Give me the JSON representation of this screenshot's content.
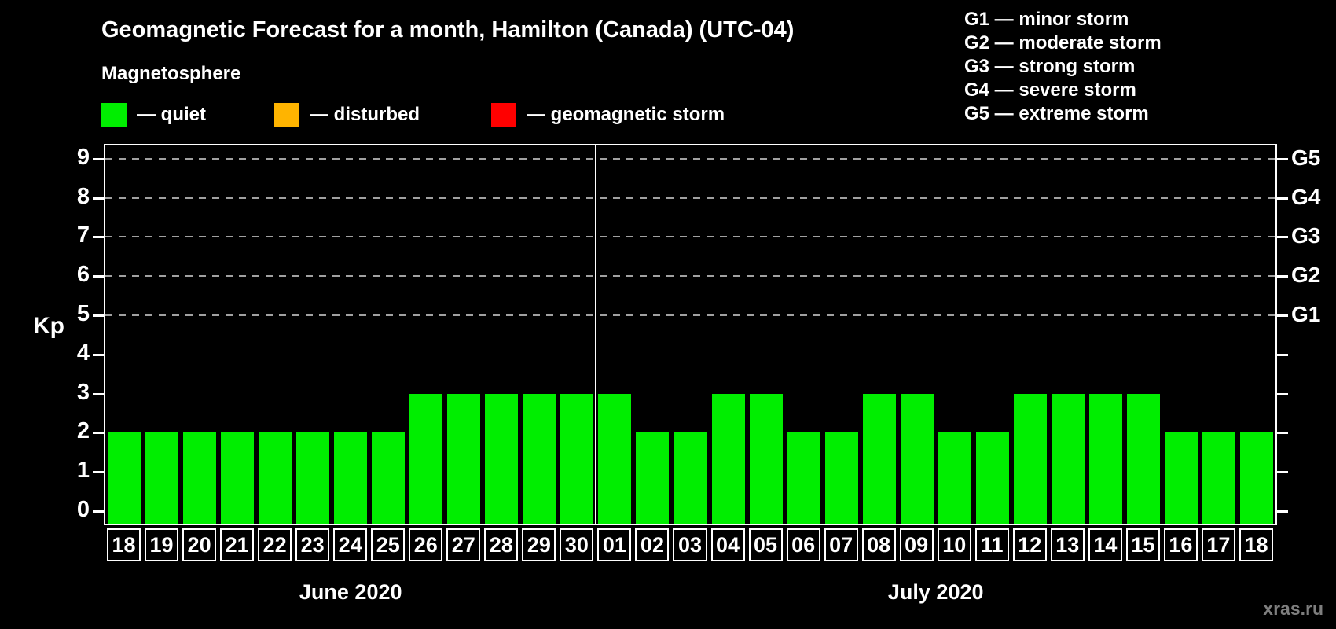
{
  "header": {
    "title": "Geomagnetic Forecast for a month, Hamilton (Canada) (UTC-04)"
  },
  "legend": {
    "title": "Magnetosphere",
    "items": [
      {
        "key": "quiet",
        "label": "— quiet"
      },
      {
        "key": "disturbed",
        "label": "— disturbed"
      },
      {
        "key": "storm",
        "label": "— geomagnetic storm"
      }
    ]
  },
  "g_legend": {
    "items": [
      "G1 — minor storm",
      "G2 — moderate storm",
      "G3 — strong storm",
      "G4 — severe storm",
      "G5 — extreme storm"
    ]
  },
  "colors": {
    "quiet": "#00ee00",
    "disturbed": "#ffb400",
    "storm": "#ff0000",
    "grid": "#a0a0a0",
    "axis": "#ffffff",
    "watermark": "#7e7e7e"
  },
  "watermark": "xras.ru",
  "chart_data": {
    "type": "bar",
    "title": "Geomagnetic Forecast for a month, Hamilton (Canada) (UTC-04)",
    "ylabel": "Kp",
    "ylim": [
      0,
      9
    ],
    "y_ticks": [
      0,
      1,
      2,
      3,
      4,
      5,
      6,
      7,
      8,
      9
    ],
    "grid_kp": [
      5,
      6,
      7,
      8,
      9
    ],
    "grid_style": "dashed",
    "legend_position": "top",
    "right_axis_labels": [
      {
        "label": "G1",
        "kp": 5
      },
      {
        "label": "G2",
        "kp": 6
      },
      {
        "label": "G3",
        "kp": 7
      },
      {
        "label": "G4",
        "kp": 8
      },
      {
        "label": "G5",
        "kp": 9
      }
    ],
    "months": [
      {
        "label": "June 2020",
        "key": "june",
        "days": [
          "18",
          "19",
          "20",
          "21",
          "22",
          "23",
          "24",
          "25",
          "26",
          "27",
          "28",
          "29",
          "30"
        ],
        "values": [
          2,
          2,
          2,
          2,
          2,
          2,
          2,
          2,
          3,
          3,
          3,
          3,
          3
        ],
        "status": "quiet"
      },
      {
        "label": "July 2020",
        "key": "july",
        "days": [
          "01",
          "02",
          "03",
          "04",
          "05",
          "06",
          "07",
          "08",
          "09",
          "10",
          "11",
          "12",
          "13",
          "14",
          "15",
          "16",
          "17",
          "18"
        ],
        "values": [
          3,
          2,
          2,
          3,
          3,
          2,
          2,
          3,
          3,
          2,
          2,
          3,
          3,
          3,
          3,
          2,
          2,
          2
        ],
        "status": "quiet"
      }
    ]
  }
}
